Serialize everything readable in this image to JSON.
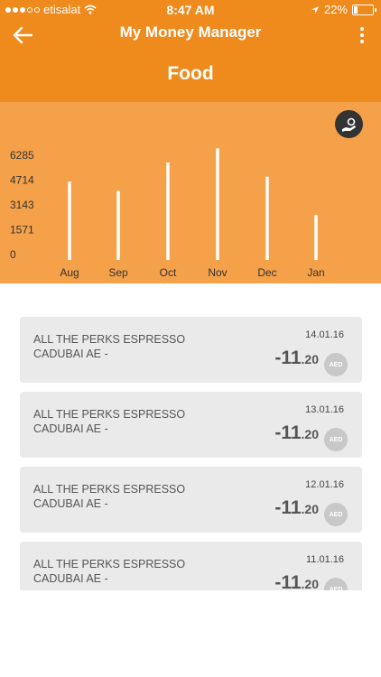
{
  "status": {
    "carrier": "etisalat",
    "time": "8:47 AM",
    "battery": "22%",
    "battery_level": 0.22
  },
  "nav": {
    "title": "My Money Manager",
    "back_icon": "arrow-left-icon",
    "more_icon": "more-vertical-icon"
  },
  "page": {
    "title": "Food"
  },
  "chart_button_icon": "hand-money-icon",
  "chart_data": {
    "type": "bar",
    "categories": [
      "Aug",
      "Sep",
      "Oct",
      "Nov",
      "Dec",
      "Jan"
    ],
    "values": [
      4700,
      4150,
      5850,
      6700,
      5000,
      2700
    ],
    "yticks": [
      "6285",
      "4714",
      "3143",
      "1571",
      "0"
    ],
    "ylim": [
      0,
      6285
    ],
    "title": "",
    "xlabel": "",
    "ylabel": "",
    "bar_color": "#ffffff",
    "grid": false
  },
  "transactions": [
    {
      "line1": "ALL THE PERKS ESPRESSO",
      "line2": "CADUBAI AE -",
      "date": "14.01.16",
      "amount_main": "-11",
      "amount_dec": ".20",
      "currency": "AED"
    },
    {
      "line1": "ALL THE PERKS ESPRESSO",
      "line2": "CADUBAI AE -",
      "date": "13.01.16",
      "amount_main": "-11",
      "amount_dec": ".20",
      "currency": "AED"
    },
    {
      "line1": "ALL THE PERKS ESPRESSO",
      "line2": "CADUBAI AE -",
      "date": "12.01.16",
      "amount_main": "-11",
      "amount_dec": ".20",
      "currency": "AED"
    },
    {
      "line1": "ALL THE PERKS ESPRESSO",
      "line2": "CADUBAI AE -",
      "date": "11.01.16",
      "amount_main": "-11",
      "amount_dec": ".20",
      "currency": "AED"
    }
  ],
  "colors": {
    "header": "#ef8a1c",
    "chart_bg": "#f4a14a",
    "card_bg": "#eaeaea"
  }
}
